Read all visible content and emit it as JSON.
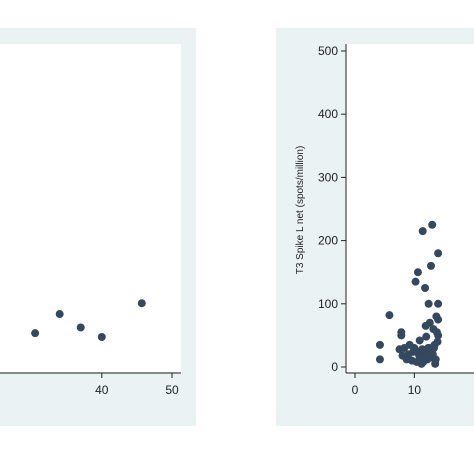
{
  "colors": {
    "panel_background": "#eaf2f3",
    "plot_background": "#ffffff",
    "marker": "#34495e",
    "axis": "#222222"
  },
  "chart_data": [
    {
      "type": "scatter",
      "title": "",
      "xlabel": "",
      "ylabel": "",
      "xlim": [
        0,
        50
      ],
      "ylim": [
        0,
        500
      ],
      "x_ticks": [
        40,
        50
      ],
      "x_tick_labels": [
        "40",
        "50"
      ],
      "grid": false,
      "series": [
        {
          "x": [
            30.5,
            34,
            37,
            40,
            45.7
          ],
          "y": [
            53,
            83,
            62,
            47,
            100
          ]
        }
      ]
    },
    {
      "type": "scatter",
      "title": "",
      "xlabel": "",
      "ylabel": "T3 Spike L net (spots/million)",
      "xlim": [
        0,
        16
      ],
      "ylim": [
        0,
        500
      ],
      "x_ticks": [
        0,
        10
      ],
      "x_tick_labels": [
        "0",
        "10"
      ],
      "y_ticks": [
        0,
        100,
        200,
        300,
        400,
        500
      ],
      "y_tick_labels": [
        "0",
        "100",
        "200",
        "300",
        "400",
        "500"
      ],
      "grid": false,
      "series": [
        {
          "x": [
            4.2,
            4.2,
            5.8,
            7.5,
            7.8,
            7.8,
            8.0,
            8.3,
            8.7,
            9.0,
            9.2,
            9.6,
            9.8,
            10.0,
            10.2,
            10.4,
            10.6,
            10.8,
            11.0,
            11.2,
            11.3,
            11.4,
            11.6,
            11.8,
            12.0,
            12.2,
            12.4,
            12.5,
            12.6,
            12.7,
            12.8,
            13.0,
            13.1,
            13.2,
            13.3,
            13.4,
            13.5,
            13.6,
            13.7,
            13.8,
            13.9,
            14.0,
            14.0,
            14.0,
            14.0,
            12.9,
            11.5,
            12.1,
            12.3,
            13.0,
            11.9,
            10.9
          ],
          "y": [
            12,
            35,
            82,
            28,
            55,
            50,
            18,
            30,
            12,
            20,
            35,
            10,
            24,
            30,
            135,
            8,
            150,
            18,
            25,
            5,
            28,
            215,
            18,
            125,
            48,
            12,
            100,
            30,
            70,
            25,
            160,
            225,
            20,
            60,
            30,
            35,
            5,
            12,
            80,
            55,
            40,
            180,
            75,
            100,
            50,
            15,
            8,
            22,
            30,
            18,
            65,
            42
          ]
        }
      ]
    }
  ]
}
